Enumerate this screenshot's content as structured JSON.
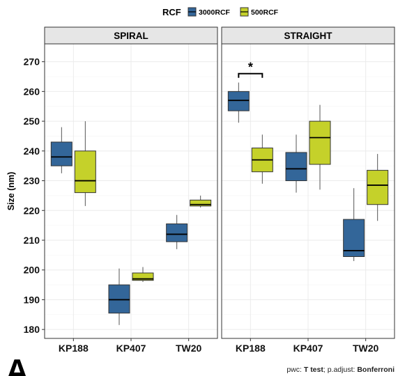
{
  "figure": {
    "panel_letter": "A",
    "caption_prefix_1": "pwc: ",
    "caption_test": "T test",
    "caption_prefix_2": "; p.adjust: ",
    "caption_method": "Bonferroni"
  },
  "colors": {
    "3000RCF": "#336699",
    "500RCF": "#c5d12a",
    "strip_bg": "#e6e6e6",
    "panel_border": "#333333",
    "grid": "#ebebeb"
  },
  "chart_data": {
    "type": "box",
    "legend": {
      "title": "RCF",
      "position": "top",
      "entries": [
        "3000RCF",
        "500RCF"
      ]
    },
    "ylabel": "Size (nm)",
    "xlabel": "",
    "ylim": [
      177,
      276
    ],
    "yticks": [
      180,
      190,
      200,
      210,
      220,
      230,
      240,
      250,
      260,
      270
    ],
    "grid": true,
    "facets": [
      {
        "name": "SPIRAL",
        "categories": [
          "KP188",
          "KP407",
          "TW20"
        ],
        "series": [
          {
            "name": "3000RCF",
            "boxes": [
              {
                "category": "KP188",
                "min": 232.5,
                "q1": 235.0,
                "median": 238.0,
                "q3": 243.0,
                "max": 248.0
              },
              {
                "category": "KP407",
                "min": 181.5,
                "q1": 185.5,
                "median": 190.0,
                "q3": 195.0,
                "max": 200.5
              },
              {
                "category": "TW20",
                "min": 207.0,
                "q1": 209.5,
                "median": 212.0,
                "q3": 215.5,
                "max": 218.5
              }
            ]
          },
          {
            "name": "500RCF",
            "boxes": [
              {
                "category": "KP188",
                "min": 221.5,
                "q1": 226.0,
                "median": 230.0,
                "q3": 240.0,
                "max": 250.0
              },
              {
                "category": "KP407",
                "min": 196.0,
                "q1": 196.5,
                "median": 197.0,
                "q3": 199.0,
                "max": 201.0
              },
              {
                "category": "TW20",
                "min": 221.0,
                "q1": 221.5,
                "median": 222.0,
                "q3": 223.5,
                "max": 225.0
              }
            ]
          }
        ]
      },
      {
        "name": "STRAIGHT",
        "categories": [
          "KP188",
          "KP407",
          "TW20"
        ],
        "series": [
          {
            "name": "3000RCF",
            "boxes": [
              {
                "category": "KP188",
                "min": 249.5,
                "q1": 253.5,
                "median": 257.0,
                "q3": 260.0,
                "max": 263.0
              },
              {
                "category": "KP407",
                "min": 226.0,
                "q1": 230.0,
                "median": 234.0,
                "q3": 239.5,
                "max": 245.5
              },
              {
                "category": "TW20",
                "min": 203.0,
                "q1": 204.5,
                "median": 206.5,
                "q3": 217.0,
                "max": 227.5
              }
            ]
          },
          {
            "name": "500RCF",
            "boxes": [
              {
                "category": "KP188",
                "min": 229.0,
                "q1": 233.0,
                "median": 237.0,
                "q3": 241.0,
                "max": 245.5
              },
              {
                "category": "KP407",
                "min": 227.0,
                "q1": 235.5,
                "median": 244.5,
                "q3": 250.0,
                "max": 255.5
              },
              {
                "category": "TW20",
                "min": 216.5,
                "q1": 222.0,
                "median": 228.5,
                "q3": 233.5,
                "max": 239.0
              }
            ]
          }
        ],
        "annotations": [
          {
            "type": "significance",
            "label": "*",
            "category": "KP188",
            "between": [
              "3000RCF",
              "500RCF"
            ],
            "y": 266
          }
        ]
      }
    ]
  }
}
